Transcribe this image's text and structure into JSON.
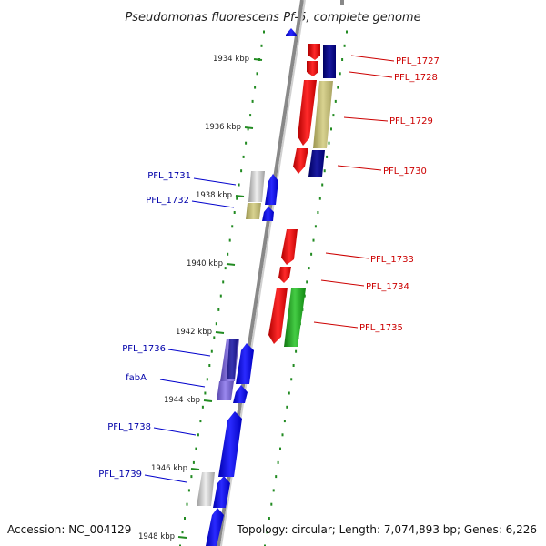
{
  "title": "Pseudomonas fluorescens Pf-5, complete genome",
  "footer": {
    "accession": "Accession: NC_004129",
    "summary": "Topology: circular; Length: 7,074,893 bp; Genes: 6,226"
  },
  "scale_ticks": [
    "1934 kbp",
    "1936 kbp",
    "1938 kbp",
    "1940 kbp",
    "1942 kbp",
    "1944 kbp",
    "1946 kbp",
    "1948 kbp"
  ],
  "genes_right": [
    "PFL_1727",
    "PFL_1728",
    "PFL_1729",
    "PFL_1730",
    "PFL_1733",
    "PFL_1734",
    "PFL_1735"
  ],
  "genes_left": [
    "PFL_1731",
    "PFL_1732",
    "PFL_1736",
    "fabA",
    "PFL_1738",
    "PFL_1739"
  ],
  "colors": {
    "forward": "#0000ff",
    "reverse": "#ff0000",
    "navy": "#000080",
    "khaki": "#bdb76b",
    "green": "#22aa22",
    "purple": "#7a66cc",
    "gray": "#b8b8b8",
    "backbone": "#888888",
    "dots": "#228b22"
  }
}
